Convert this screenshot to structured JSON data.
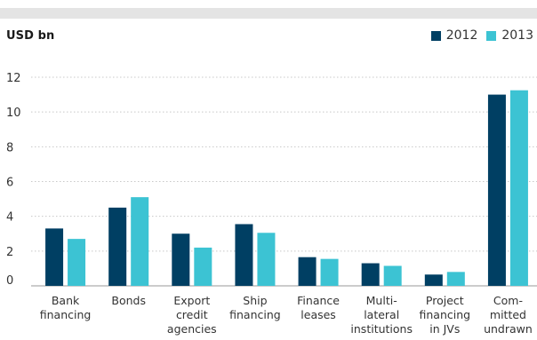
{
  "chart_data": {
    "type": "bar",
    "unit_label": "USD bn",
    "categories": [
      [
        "Bank",
        "financing"
      ],
      [
        "Bonds"
      ],
      [
        "Export",
        "credit",
        "agencies"
      ],
      [
        "Ship",
        "financing"
      ],
      [
        "Finance",
        "leases"
      ],
      [
        "Multi-",
        "lateral",
        "institutions"
      ],
      [
        "Project",
        "financing",
        "in JVs"
      ],
      [
        "Com-",
        "mitted",
        "undrawn"
      ]
    ],
    "series": [
      {
        "name": "2012",
        "color": "#003f63",
        "values": [
          3.3,
          4.5,
          3.0,
          3.55,
          1.65,
          1.3,
          0.65,
          11.0
        ]
      },
      {
        "name": "2013",
        "color": "#3cc3d3",
        "values": [
          2.7,
          5.1,
          2.2,
          3.05,
          1.55,
          1.15,
          0.8,
          11.25
        ]
      }
    ],
    "yticks": [
      "0",
      "2",
      "4",
      "6",
      "8",
      "10",
      "12"
    ],
    "ylim": [
      0,
      12
    ],
    "grid": true,
    "legend_position": "top-right"
  }
}
